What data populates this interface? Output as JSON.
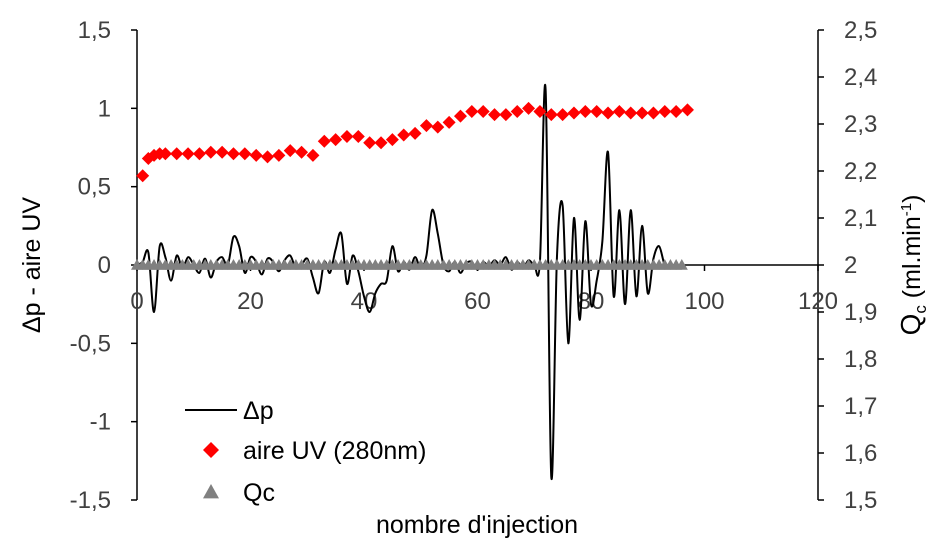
{
  "chart_data": {
    "type": "line",
    "x_axis": {
      "label": "nombre d'injection",
      "range": [
        0,
        120
      ],
      "ticks": [
        0,
        20,
        40,
        60,
        80,
        100,
        120
      ],
      "tick_labels": [
        "0",
        "20",
        "40",
        "60",
        "80",
        "100",
        "120"
      ]
    },
    "y_axis_left": {
      "label": "Δp - aire UV",
      "range": [
        -1.5,
        1.5
      ],
      "ticks": [
        -1.5,
        -1,
        -0.5,
        0,
        0.5,
        1,
        1.5
      ],
      "tick_labels": [
        "-1,5",
        "-1",
        "-0,5",
        "0",
        "0,5",
        "1",
        "1,5"
      ]
    },
    "y_axis_right": {
      "label_main": "Q",
      "label_sub": "c",
      "label_unit": " (ml.min",
      "label_sup": "-1",
      "label_end": ")",
      "range": [
        1.5,
        2.5
      ],
      "ticks": [
        1.5,
        1.6,
        1.7,
        1.8,
        1.9,
        2.0,
        2.1,
        2.2,
        2.3,
        2.4,
        2.5
      ],
      "tick_labels": [
        "1,5",
        "1,6",
        "1,7",
        "1,8",
        "1,9",
        "2",
        "2,1",
        "2,2",
        "2,3",
        "2,4",
        "2,5"
      ]
    },
    "legend_position": "bottom-left",
    "grid": false,
    "series": [
      {
        "name": "Δp",
        "axis": "left",
        "style": "line",
        "color": "#000000",
        "x": [
          0,
          1,
          2,
          3,
          4,
          5,
          6,
          7,
          8,
          9,
          10,
          11,
          12,
          13,
          14,
          15,
          16,
          17,
          18,
          19,
          20,
          21,
          22,
          23,
          24,
          25,
          26,
          27,
          28,
          29,
          30,
          31,
          32,
          33,
          34,
          35,
          36,
          37,
          38,
          39,
          40,
          41,
          42,
          43,
          44,
          45,
          46,
          47,
          48,
          49,
          50,
          51,
          52,
          53,
          54,
          55,
          56,
          57,
          58,
          59,
          60,
          61,
          62,
          63,
          64,
          65,
          66,
          67,
          68,
          69,
          70,
          71,
          72,
          73,
          74,
          75,
          76,
          77,
          78,
          79,
          80,
          81,
          82,
          83,
          84,
          85,
          86,
          87,
          88,
          89,
          90,
          91,
          92,
          93,
          94,
          95,
          96
        ],
        "values": [
          0,
          0.02,
          0.08,
          -0.3,
          0.12,
          0.05,
          -0.1,
          0.06,
          -0.02,
          0.05,
          0,
          -0.05,
          0.04,
          -0.08,
          0.02,
          0.05,
          0,
          0.18,
          0.12,
          -0.05,
          0.05,
          0.02,
          -0.06,
          0.04,
          0.02,
          -0.04,
          0.03,
          0.06,
          -0.02,
          0,
          0.04,
          -0.08,
          -0.18,
          0.02,
          -0.05,
          0.1,
          0.2,
          -0.12,
          0.06,
          -0.04,
          -0.2,
          -0.3,
          -0.18,
          -0.12,
          -0.1,
          0.12,
          -0.04,
          0.02,
          -0.03,
          0.05,
          -0.02,
          0.06,
          0.35,
          0.2,
          0,
          -0.04,
          0.02,
          -0.05,
          0.01,
          0.02,
          -0.03,
          0.02,
          -0.01,
          0.03,
          0,
          0.05,
          -0.03,
          0.02,
          -0.02,
          0.03,
          0,
          0.02,
          1.12,
          -1.35,
          0.05,
          0.38,
          -0.5,
          0.3,
          -0.35,
          0.28,
          -0.25,
          -0.1,
          0.15,
          0.72,
          -0.2,
          0.35,
          -0.25,
          0.35,
          -0.2,
          0.25,
          -0.18,
          0.04,
          0.12,
          0,
          0,
          0,
          0
        ]
      },
      {
        "name": "aire UV (280nm)",
        "axis": "left",
        "style": "diamond",
        "color": "#ff0000",
        "x": [
          1,
          2,
          3,
          4,
          5,
          7,
          9,
          11,
          13,
          15,
          17,
          19,
          21,
          23,
          25,
          27,
          29,
          31,
          33,
          35,
          37,
          39,
          41,
          43,
          45,
          47,
          49,
          51,
          53,
          55,
          57,
          59,
          61,
          63,
          65,
          67,
          69,
          71,
          73,
          75,
          77,
          79,
          81,
          83,
          85,
          87,
          89,
          91,
          93,
          95,
          97
        ],
        "values": [
          0.57,
          0.68,
          0.7,
          0.71,
          0.71,
          0.71,
          0.71,
          0.71,
          0.72,
          0.72,
          0.71,
          0.71,
          0.7,
          0.69,
          0.7,
          0.73,
          0.72,
          0.7,
          0.79,
          0.8,
          0.82,
          0.82,
          0.78,
          0.78,
          0.8,
          0.83,
          0.84,
          0.89,
          0.88,
          0.91,
          0.95,
          0.98,
          0.98,
          0.96,
          0.96,
          0.98,
          1.0,
          0.98,
          0.96,
          0.96,
          0.97,
          0.98,
          0.98,
          0.97,
          0.98,
          0.97,
          0.97,
          0.97,
          0.98,
          0.98,
          0.99
        ]
      },
      {
        "name": "Qc",
        "axis": "right",
        "style": "triangle",
        "color": "#808080",
        "x_start": 0,
        "x_end": 96,
        "x_step": 1,
        "value": 2.0
      }
    ]
  }
}
